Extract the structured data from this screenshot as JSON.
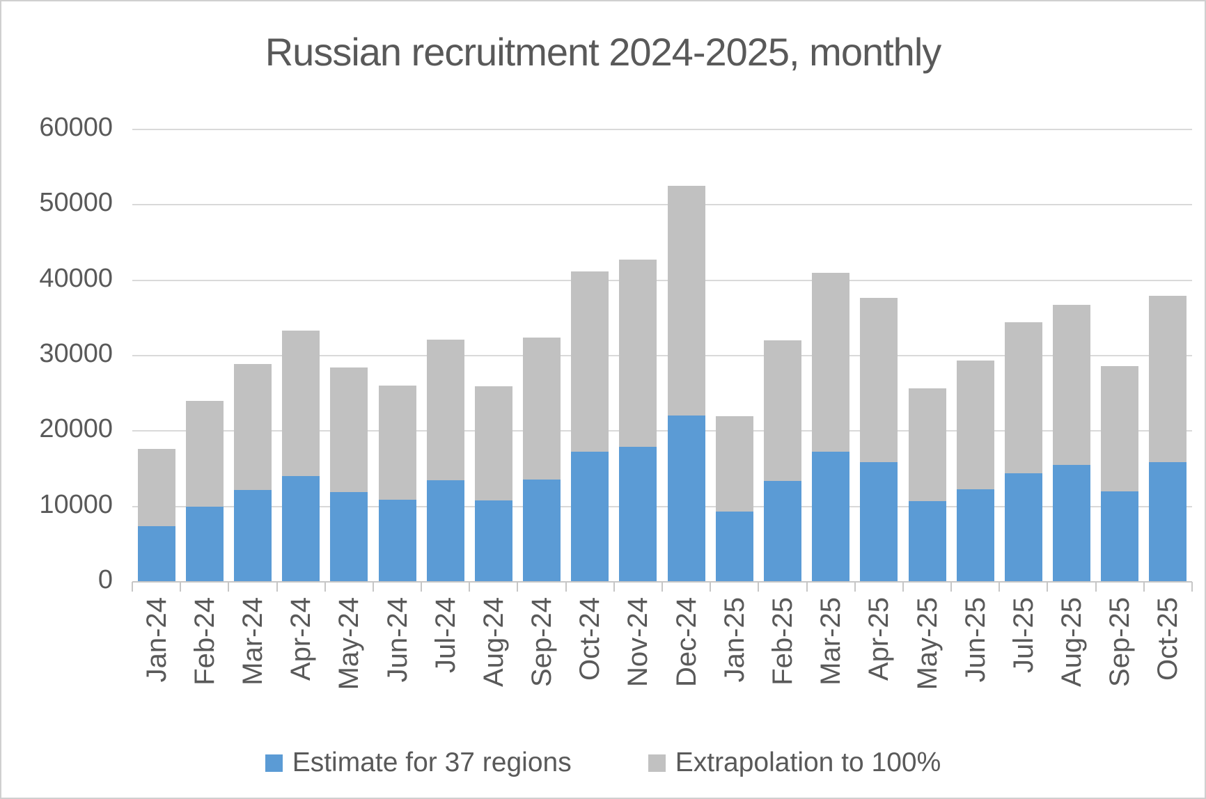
{
  "chart_data": {
    "type": "bar",
    "stacked": true,
    "title": "Russian recruitment 2024-2025, monthly",
    "categories": [
      "Jan-24",
      "Feb-24",
      "Mar-24",
      "Apr-24",
      "May-24",
      "Jun-24",
      "Jul-24",
      "Aug-24",
      "Sep-24",
      "Oct-24",
      "Nov-24",
      "Dec-24",
      "Jan-25",
      "Feb-25",
      "Mar-25",
      "Apr-25",
      "May-25",
      "Jun-25",
      "Jul-25",
      "Aug-25",
      "Sep-25",
      "Oct-25"
    ],
    "series": [
      {
        "name": "Estimate for 37 regions",
        "color": "#5b9bd5",
        "values": [
          7400,
          10000,
          12200,
          14000,
          11900,
          10900,
          13500,
          10800,
          13600,
          17300,
          17900,
          22100,
          9300,
          13400,
          17300,
          15900,
          10700,
          12300,
          14400,
          15500,
          12000,
          15900
        ]
      },
      {
        "name": "Extrapolation to 100%",
        "color": "#c1c1c1",
        "values": [
          10200,
          14000,
          16700,
          19300,
          16500,
          15100,
          18600,
          15100,
          18800,
          23900,
          24800,
          30400,
          12700,
          18600,
          23700,
          21800,
          15000,
          17100,
          20000,
          21200,
          16600,
          22000
        ]
      }
    ],
    "stack_totals": [
      17600,
      24000,
      28900,
      33300,
      28400,
      26000,
      32100,
      25900,
      32400,
      41200,
      42700,
      52500,
      22000,
      32000,
      41000,
      37700,
      25700,
      29400,
      34400,
      36700,
      28600,
      37900
    ],
    "xlabel": "",
    "ylabel": "",
    "ylim": [
      0,
      60000
    ],
    "ytick_interval": 10000,
    "ytick_labels": [
      "0",
      "10000",
      "20000",
      "30000",
      "40000",
      "50000",
      "60000"
    ],
    "grid": true,
    "legend_position": "bottom"
  }
}
